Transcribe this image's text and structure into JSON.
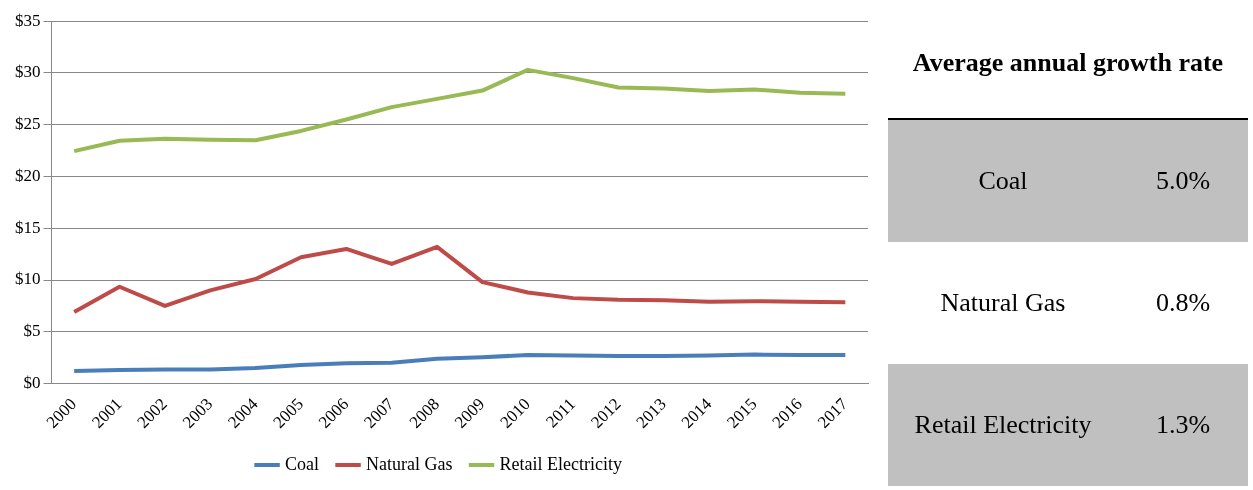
{
  "chart_data": [
    {
      "type": "line",
      "categories": [
        "2000",
        "2001",
        "2002",
        "2003",
        "2004",
        "2005",
        "2006",
        "2007",
        "2008",
        "2009",
        "2010",
        "2011",
        "2012",
        "2013",
        "2014",
        "2015",
        "2016",
        "2017"
      ],
      "series": [
        {
          "name": "Coal",
          "color": "#4a7ebb",
          "values": [
            1.2,
            1.3,
            1.35,
            1.35,
            1.5,
            1.8,
            1.95,
            2.0,
            2.4,
            2.55,
            2.75,
            2.7,
            2.65,
            2.65,
            2.7,
            2.8,
            2.75,
            2.75
          ]
        },
        {
          "name": "Natural Gas",
          "color": "#be4b48",
          "values": [
            6.9,
            9.35,
            7.5,
            9.0,
            10.1,
            12.2,
            13.0,
            11.55,
            13.2,
            9.8,
            8.8,
            8.25,
            8.1,
            8.05,
            7.9,
            7.95,
            7.9,
            7.85
          ]
        },
        {
          "name": "Retail Electricity",
          "color": "#98b954",
          "values": [
            22.45,
            23.45,
            23.65,
            23.55,
            23.5,
            24.4,
            25.5,
            26.7,
            27.5,
            28.3,
            30.3,
            29.5,
            28.6,
            28.5,
            28.25,
            28.4,
            28.1,
            28.0
          ]
        }
      ],
      "ylim": [
        0,
        35
      ],
      "yticks": [
        {
          "value": 0,
          "label": "$0"
        },
        {
          "value": 5,
          "label": "$5"
        },
        {
          "value": 10,
          "label": "$10"
        },
        {
          "value": 15,
          "label": "$15"
        },
        {
          "value": 20,
          "label": "$20"
        },
        {
          "value": 25,
          "label": "$25"
        },
        {
          "value": 30,
          "label": "$30"
        },
        {
          "value": 35,
          "label": "$35"
        }
      ],
      "grid": "y",
      "legend": "bottom",
      "marker": "none",
      "line_style": "solid"
    },
    {
      "type": "other",
      "title": "Average annual growth rate",
      "annotations": [
        "Coal",
        "5.0%",
        "Natural Gas",
        "0.8%",
        "Retail Electricity",
        "1.3%"
      ]
    }
  ]
}
